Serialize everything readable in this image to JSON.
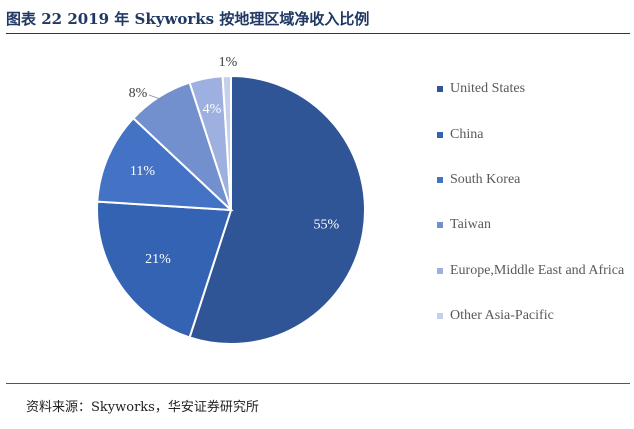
{
  "header": {
    "title": "图表 22 2019 年 Skyworks 按地理区域净收入比例"
  },
  "footer": {
    "source": "资料来源：Skyworks，华安证券研究所"
  },
  "chart_data": {
    "type": "pie",
    "title": "图表 22 2019 年 Skyworks 按地理区域净收入比例",
    "start_angle_deg": 0,
    "direction": "clockwise",
    "legend_position": "right",
    "slices": [
      {
        "label": "United States",
        "value": 55,
        "data_label": "55%",
        "color": "#2f5597"
      },
      {
        "label": "China",
        "value": 21,
        "data_label": "21%",
        "color": "#3563b4"
      },
      {
        "label": "South Korea",
        "value": 11,
        "data_label": "11%",
        "color": "#4472c4"
      },
      {
        "label": "Taiwan",
        "value": 8,
        "data_label": "8%",
        "color": "#7390ce"
      },
      {
        "label": "Europe,Middle East and Africa",
        "value": 4,
        "data_label": "4%",
        "color": "#9db0df"
      },
      {
        "label": "Other Asia-Pacific",
        "value": 1,
        "data_label": "1%",
        "color": "#c5d0ea"
      }
    ]
  }
}
